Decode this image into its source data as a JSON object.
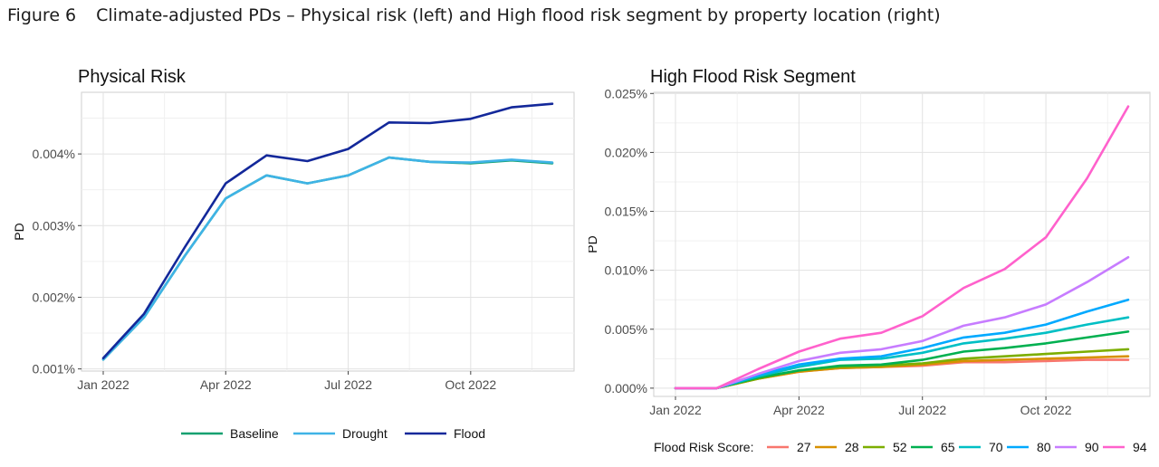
{
  "figure": {
    "number": "Figure 6",
    "title": "Climate-adjusted PDs – Physical risk (left) and High flood risk segment by property location (right)"
  },
  "chart_data": [
    {
      "type": "line",
      "title": "Physical Risk",
      "xlabel": "",
      "ylabel": "PD",
      "x": [
        "2022-01",
        "2022-02",
        "2022-03",
        "2022-04",
        "2022-05",
        "2022-06",
        "2022-07",
        "2022-08",
        "2022-09",
        "2022-10",
        "2022-11",
        "2022-12"
      ],
      "xticks": [
        {
          "value": "2022-01",
          "label": "Jan 2022"
        },
        {
          "value": "2022-04",
          "label": "Apr 2022"
        },
        {
          "value": "2022-07",
          "label": "Jul 2022"
        },
        {
          "value": "2022-10",
          "label": "Oct 2022"
        }
      ],
      "yticks": [
        {
          "value": 0.001,
          "label": "0.001%"
        },
        {
          "value": 0.002,
          "label": "0.002%"
        },
        {
          "value": 0.003,
          "label": "0.003%"
        },
        {
          "value": 0.004,
          "label": "0.004%"
        }
      ],
      "ylim": [
        0.00097,
        0.00486
      ],
      "y_unit": "%",
      "grid": true,
      "legend_position": "bottom",
      "series": [
        {
          "name": "Baseline",
          "color": "#12a070",
          "values": [
            0.00113,
            0.00172,
            0.00258,
            0.00338,
            0.0037,
            0.00359,
            0.0037,
            0.00395,
            0.00389,
            0.00387,
            0.00391,
            0.00387
          ]
        },
        {
          "name": "Drought",
          "color": "#3fb3e6",
          "values": [
            0.00113,
            0.00172,
            0.00258,
            0.00338,
            0.0037,
            0.00359,
            0.0037,
            0.00395,
            0.00389,
            0.00388,
            0.00392,
            0.00388
          ]
        },
        {
          "name": "Flood",
          "color": "#13289a",
          "values": [
            0.00115,
            0.00177,
            0.0027,
            0.00359,
            0.00398,
            0.0039,
            0.00407,
            0.00444,
            0.00443,
            0.00449,
            0.00465,
            0.0047
          ]
        }
      ]
    },
    {
      "type": "line",
      "title": "High Flood Risk Segment",
      "xlabel": "",
      "ylabel": "PD",
      "x": [
        "2022-01",
        "2022-02",
        "2022-03",
        "2022-04",
        "2022-05",
        "2022-06",
        "2022-07",
        "2022-08",
        "2022-09",
        "2022-10",
        "2022-11",
        "2022-12"
      ],
      "xticks": [
        {
          "value": "2022-01",
          "label": "Jan 2022"
        },
        {
          "value": "2022-04",
          "label": "Apr 2022"
        },
        {
          "value": "2022-07",
          "label": "Jul 2022"
        },
        {
          "value": "2022-10",
          "label": "Oct 2022"
        }
      ],
      "yticks": [
        {
          "value": 0.0,
          "label": "0.000%"
        },
        {
          "value": 0.005,
          "label": "0.005%"
        },
        {
          "value": 0.01,
          "label": "0.010%"
        },
        {
          "value": 0.015,
          "label": "0.015%"
        },
        {
          "value": 0.02,
          "label": "0.020%"
        },
        {
          "value": 0.025,
          "label": "0.025%"
        }
      ],
      "ylim": [
        -0.0007,
        0.0251
      ],
      "y_unit": "%",
      "grid": true,
      "legend_title": "Flood Risk Score:",
      "legend_position": "bottom",
      "series": [
        {
          "name": "27",
          "color": "#f8766d",
          "values": [
            0.0,
            0.0,
            0.0008,
            0.0014,
            0.0017,
            0.0018,
            0.0019,
            0.0022,
            0.0022,
            0.0023,
            0.0024,
            0.0024
          ]
        },
        {
          "name": "28",
          "color": "#d89000",
          "values": [
            0.0,
            0.0,
            0.0008,
            0.0014,
            0.0017,
            0.0018,
            0.002,
            0.0023,
            0.0024,
            0.0025,
            0.0026,
            0.0027
          ]
        },
        {
          "name": "52",
          "color": "#7cae00",
          "values": [
            0.0,
            0.0,
            0.0008,
            0.0015,
            0.0018,
            0.0019,
            0.0021,
            0.0025,
            0.0027,
            0.0029,
            0.0031,
            0.0033
          ]
        },
        {
          "name": "65",
          "color": "#00b050",
          "values": [
            0.0,
            0.0,
            0.0009,
            0.0015,
            0.0019,
            0.002,
            0.0024,
            0.0031,
            0.0034,
            0.0038,
            0.0043,
            0.0048
          ]
        },
        {
          "name": "70",
          "color": "#00bfc4",
          "values": [
            0.0,
            0.0,
            0.001,
            0.0018,
            0.0024,
            0.0025,
            0.003,
            0.0038,
            0.0042,
            0.0047,
            0.0054,
            0.006
          ]
        },
        {
          "name": "80",
          "color": "#00a9ff",
          "values": [
            0.0,
            0.0,
            0.0011,
            0.002,
            0.0025,
            0.0027,
            0.0034,
            0.0043,
            0.0047,
            0.0054,
            0.0065,
            0.0075
          ]
        },
        {
          "name": "90",
          "color": "#c77cff",
          "values": [
            0.0,
            0.0,
            0.0012,
            0.0023,
            0.003,
            0.0033,
            0.004,
            0.0053,
            0.006,
            0.0071,
            0.009,
            0.0111
          ]
        },
        {
          "name": "94",
          "color": "#ff61cc",
          "values": [
            0.0,
            0.0,
            0.0016,
            0.0031,
            0.0042,
            0.0047,
            0.0061,
            0.0085,
            0.0101,
            0.0128,
            0.0178,
            0.0239
          ]
        }
      ]
    }
  ]
}
